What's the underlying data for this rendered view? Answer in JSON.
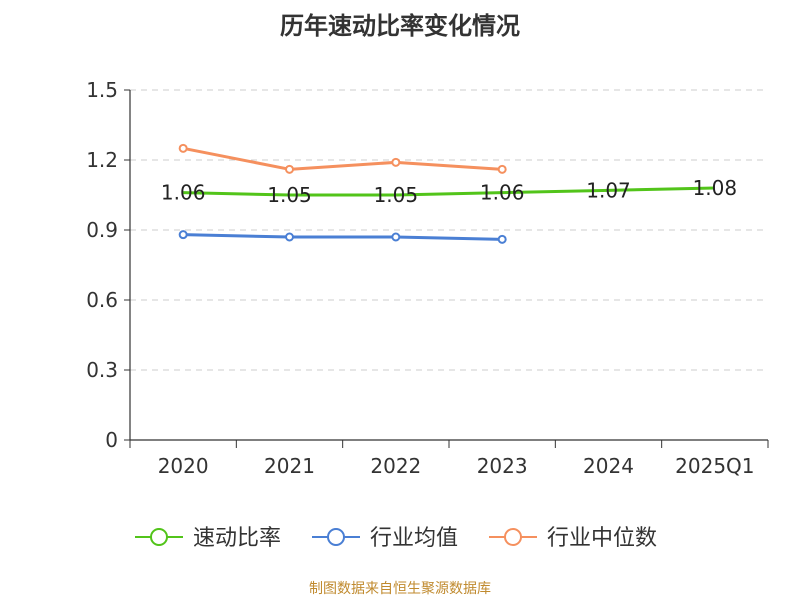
{
  "title": "历年速动比率变化情况",
  "source": "制图数据来自恒生聚源数据库",
  "colors": {
    "series_1": "#52c41a",
    "series_2": "#4a7fd4",
    "series_3": "#f5905e",
    "axis": "#333333",
    "grid": "#cccccc",
    "source_text": "#c08a2e"
  },
  "chart_data": {
    "type": "line",
    "categories": [
      "2020",
      "2021",
      "2022",
      "2023",
      "2024",
      "2025Q1"
    ],
    "ylim": [
      0,
      1.5
    ],
    "yticks": [
      "0",
      "0.3",
      "0.6",
      "0.9",
      "1.2",
      "1.5"
    ],
    "grid": true,
    "legend_position": "bottom",
    "series": [
      {
        "name": "速动比率",
        "values": [
          1.06,
          1.05,
          1.05,
          1.06,
          1.07,
          1.08
        ],
        "labels": [
          "1.06",
          "1.05",
          "1.05",
          "1.06",
          "1.07",
          "1.08"
        ],
        "color": "#52c41a"
      },
      {
        "name": "行业均值",
        "values": [
          0.88,
          0.87,
          0.87,
          0.86,
          null,
          null
        ],
        "color": "#4a7fd4"
      },
      {
        "name": "行业中位数",
        "values": [
          1.25,
          1.16,
          1.19,
          1.16,
          null,
          null
        ],
        "color": "#f5905e"
      }
    ]
  }
}
